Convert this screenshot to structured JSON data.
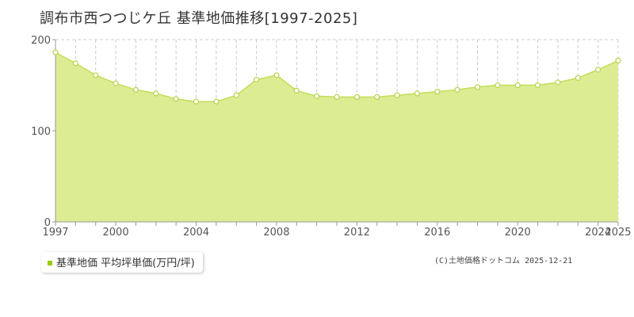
{
  "chart_title": "調布市西つつじケ丘 基準地価推移[1997-2025]",
  "legend": {
    "label": "基準地価 平均坪単価(万円/坪)"
  },
  "credit": "(C)土地価格ドットコム 2025-12-21",
  "colors": {
    "fill": "#dcec93",
    "line": "#c3dd5a",
    "point_stroke": "#b5d34a",
    "grid": "#cccccc",
    "swatch": "#99cc00"
  },
  "chart_data": {
    "type": "area",
    "x": [
      1997,
      1998,
      1999,
      2000,
      2001,
      2002,
      2003,
      2004,
      2005,
      2006,
      2007,
      2008,
      2009,
      2010,
      2011,
      2012,
      2013,
      2014,
      2015,
      2016,
      2017,
      2018,
      2019,
      2020,
      2021,
      2022,
      2023,
      2024,
      2025
    ],
    "series": [
      {
        "name": "基準地価 平均坪単価(万円/坪)",
        "values": [
          186,
          174,
          161,
          152,
          145,
          141,
          135,
          132,
          132,
          139,
          156,
          161,
          144,
          138,
          137,
          137,
          137,
          139,
          141,
          143,
          145,
          148,
          150,
          150,
          150,
          153,
          158,
          167,
          177
        ]
      }
    ],
    "xticks": [
      "1997",
      "2000",
      "2004",
      "2008",
      "2012",
      "2016",
      "2020",
      "2024",
      "2025"
    ],
    "yticks": [
      "0",
      "100",
      "200"
    ],
    "xlim": [
      1997,
      2025
    ],
    "ylim": [
      0,
      200
    ],
    "grid": true,
    "legend_position": "bottom-left"
  }
}
